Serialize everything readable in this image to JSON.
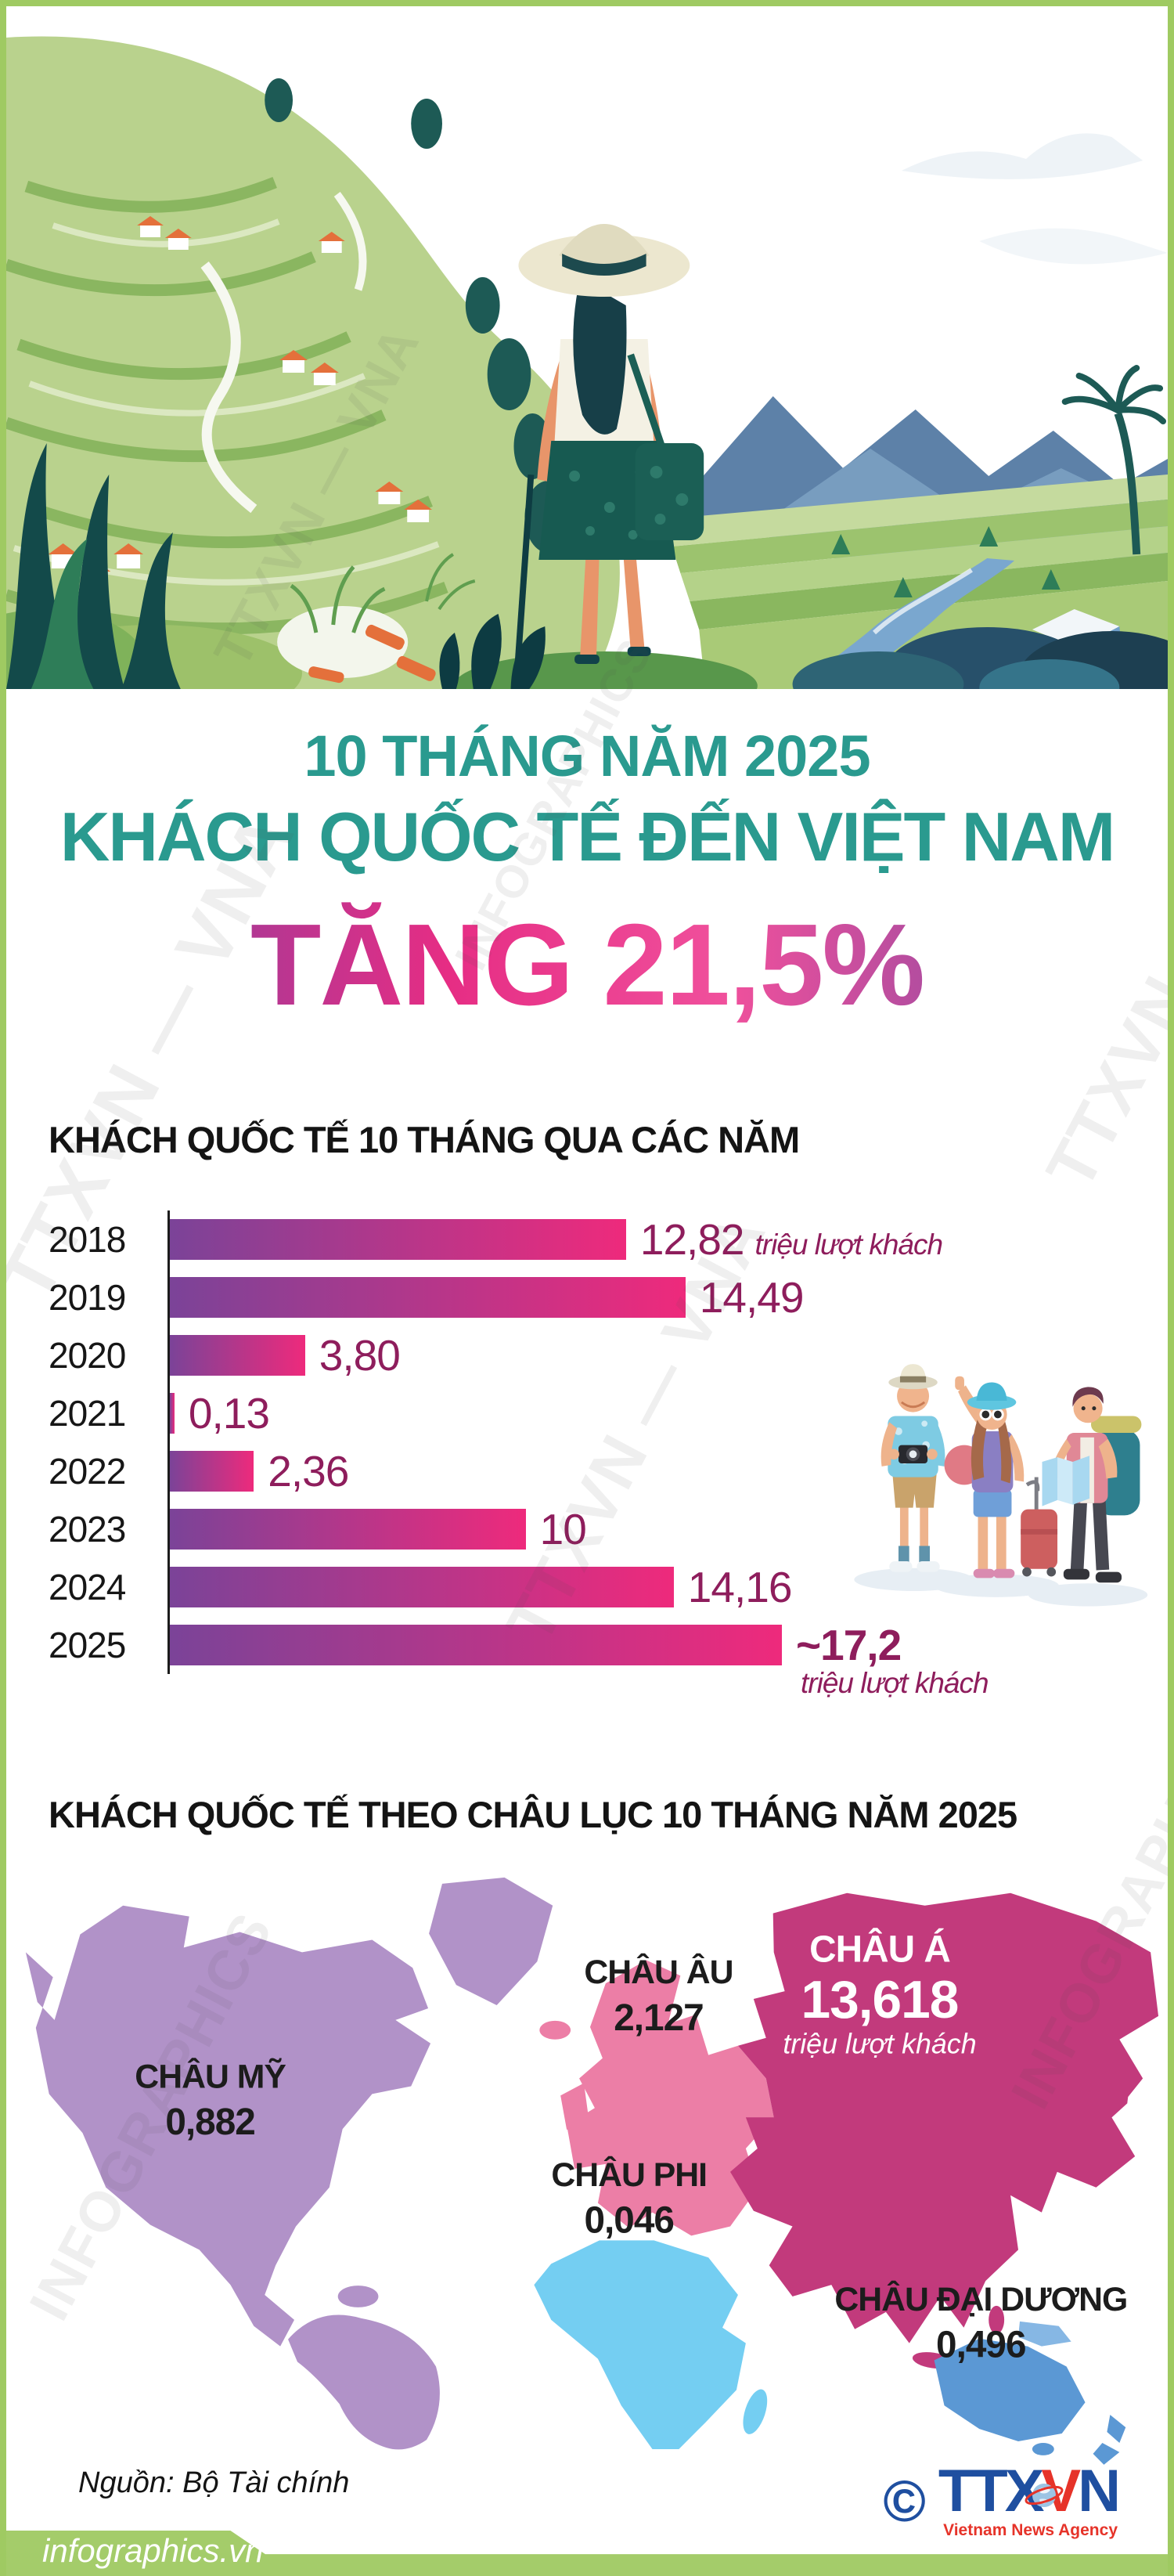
{
  "header": {
    "kicker": "10 THÁNG NĂM 2025",
    "title": "KHÁCH QUỐC TẾ ĐẾN VIỆT NAM",
    "highlight": "TĂNG 21,5%"
  },
  "bar_section": {
    "title": "KHÁCH QUỐC TẾ 10 THÁNG QUA CÁC NĂM",
    "unit": "triệu lượt khách",
    "rows": [
      {
        "year": "2018",
        "value_label": "12,82",
        "suffix": "triệu lượt khách"
      },
      {
        "year": "2019",
        "value_label": "14,49",
        "suffix": ""
      },
      {
        "year": "2020",
        "value_label": "3,80",
        "suffix": ""
      },
      {
        "year": "2021",
        "value_label": "0,13",
        "suffix": ""
      },
      {
        "year": "2022",
        "value_label": "2,36",
        "suffix": ""
      },
      {
        "year": "2023",
        "value_label": "10",
        "suffix": ""
      },
      {
        "year": "2024",
        "value_label": "14,16",
        "suffix": ""
      },
      {
        "year": "2025",
        "value_label": "~17,2",
        "suffix": "triệu lượt khách"
      }
    ]
  },
  "map_section": {
    "title": "KHÁCH QUỐC TẾ THEO CHÂU LỤC 10 THÁNG NĂM 2025",
    "continents": [
      {
        "name": "CHÂU MỸ",
        "value": "0,882",
        "color": "#b192c8"
      },
      {
        "name": "CHÂU ÂU",
        "value": "2,127",
        "color": "#ec7ea6"
      },
      {
        "name": "CHÂU Á",
        "value": "13,618",
        "unit": "triệu lượt khách",
        "color": "#c23a7c"
      },
      {
        "name": "CHÂU PHI",
        "value": "0,046",
        "color": "#74cef2"
      },
      {
        "name": "CHÂU ĐẠI DƯƠNG",
        "value": "0,496",
        "color": "#5b98d4"
      }
    ]
  },
  "footer": {
    "source": "Nguồn: Bộ Tài chính",
    "brand": "infographics.vn",
    "logo": {
      "copyright": "©",
      "part1": "TTX",
      "part2": "V",
      "part3": "N",
      "tagline": "Vietnam News Agency"
    }
  },
  "watermarks": [
    {
      "text": "TTXVN — VNA"
    },
    {
      "text": "INFOGRAPHICS"
    }
  ],
  "colors": {
    "teal": "#2a9a8f",
    "frame_green": "#9fca62",
    "bar_gradient_start": "#7b4398",
    "bar_gradient_end": "#ee2a7c",
    "value_text": "#8e1d5c"
  },
  "chart_data": [
    {
      "type": "bar",
      "orientation": "horizontal",
      "title": "KHÁCH QUỐC TẾ 10 THÁNG QUA CÁC NĂM",
      "categories": [
        "2018",
        "2019",
        "2020",
        "2021",
        "2022",
        "2023",
        "2024",
        "2025"
      ],
      "values": [
        12.82,
        14.49,
        3.8,
        0.13,
        2.36,
        10,
        14.16,
        17.2
      ],
      "unit": "triệu lượt khách",
      "xlim": [
        0,
        17.2
      ],
      "note": "2025 is approximate (~17,2)"
    },
    {
      "type": "map",
      "title": "KHÁCH QUỐC TẾ THEO CHÂU LỤC 10 THÁNG NĂM 2025",
      "unit": "triệu lượt khách",
      "regions": [
        {
          "name": "CHÂU Á",
          "value": 13.618
        },
        {
          "name": "CHÂU ÂU",
          "value": 2.127
        },
        {
          "name": "CHÂU MỸ",
          "value": 0.882
        },
        {
          "name": "CHÂU PHI",
          "value": 0.046
        },
        {
          "name": "CHÂU ĐẠI DƯƠNG",
          "value": 0.496
        }
      ]
    }
  ]
}
